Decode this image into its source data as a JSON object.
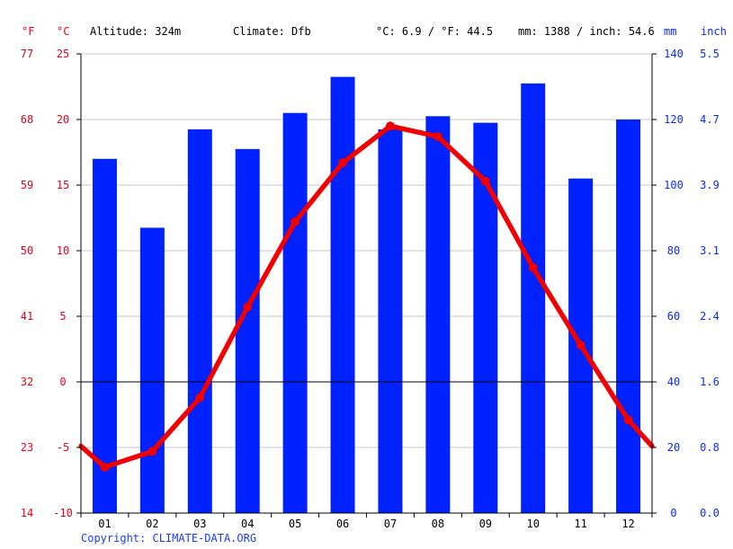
{
  "header": {
    "unit_f": "°F",
    "unit_c": "°C",
    "altitude": "Altitude: 324m",
    "climate": "Climate: Dfb",
    "temp_summary": "°C: 6.9 / °F: 44.5",
    "precip_summary": "mm: 1388 / inch: 54.6",
    "unit_mm": "mm",
    "unit_inch": "inch"
  },
  "copyright": "Copyright: CLIMATE-DATA.ORG",
  "colors": {
    "bars": "#0022ff",
    "line": "#f00000",
    "temp_axis": "#e8001c",
    "precip_axis": "#0a2bff"
  },
  "chart_data": {
    "type": "bar+line",
    "categories": [
      "01",
      "02",
      "03",
      "04",
      "05",
      "06",
      "07",
      "08",
      "09",
      "10",
      "11",
      "12"
    ],
    "series": [
      {
        "values": [
          108,
          87,
          117,
          111,
          122,
          133,
          117,
          121,
          119,
          131,
          102,
          120
        ]
      },
      {
        "values": [
          -6.5,
          -5.3,
          -1.2,
          5.7,
          12.2,
          16.7,
          19.5,
          18.7,
          15.3,
          8.7,
          2.8,
          -2.9
        ]
      }
    ],
    "temp_edge_values": [
      -4.9,
      -4.9
    ],
    "y_left_c_ticks": [
      "-10",
      "-5",
      "0",
      "5",
      "10",
      "15",
      "20",
      "25"
    ],
    "y_left_f_ticks": [
      "14",
      "23",
      "32",
      "41",
      "50",
      "59",
      "68",
      "77"
    ],
    "y_right_mm_ticks": [
      "0",
      "20",
      "40",
      "60",
      "80",
      "100",
      "120",
      "140"
    ],
    "y_right_inch_ticks": [
      "0.0",
      "0.8",
      "1.6",
      "2.4",
      "3.1",
      "3.9",
      "4.7",
      "5.5"
    ],
    "ylim_c": [
      -10,
      25
    ],
    "ylim_mm": [
      0,
      140
    ],
    "grid": true
  }
}
